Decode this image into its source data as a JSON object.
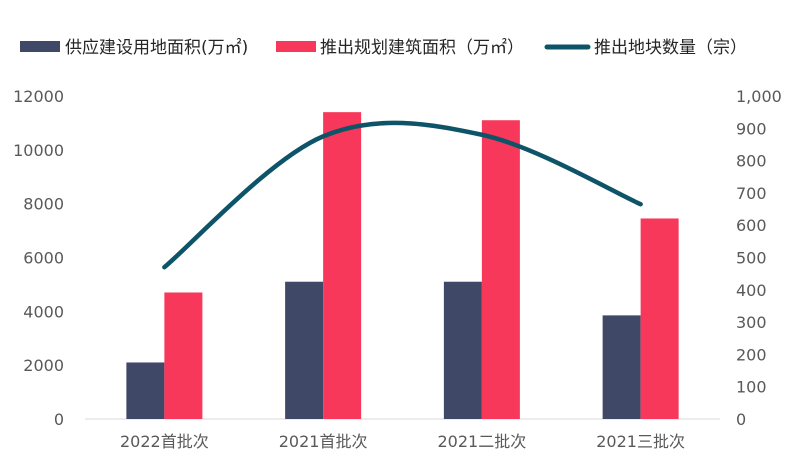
{
  "chart_data": {
    "type": "bar+line",
    "categories": [
      "2022首批次",
      "2021首批次",
      "2021二批次",
      "2021三批次"
    ],
    "series": [
      {
        "name": "供应建设用地面积(万㎡)",
        "type": "bar",
        "axis": "left",
        "color": "#404868",
        "values": [
          2100,
          5100,
          5100,
          3850
        ]
      },
      {
        "name": "推出规划建筑面积（万㎡）",
        "type": "bar",
        "axis": "left",
        "color": "#F7385A",
        "values": [
          4700,
          11400,
          11100,
          7450
        ]
      },
      {
        "name": "推出地块数量（宗）",
        "type": "line",
        "axis": "right",
        "color": "#0E5468",
        "smooth": true,
        "values": [
          470,
          875,
          880,
          665
        ]
      }
    ],
    "left_axis": {
      "min": 0,
      "max": 12000,
      "step": 2000,
      "tick_labels": [
        "0",
        "2000",
        "4000",
        "6000",
        "8000",
        "10000",
        "12000"
      ]
    },
    "right_axis": {
      "min": 0,
      "max": 1000,
      "step": 100,
      "tick_labels": [
        "0",
        "100",
        "200",
        "300",
        "400",
        "500",
        "600",
        "700",
        "800",
        "900",
        "1,000"
      ]
    },
    "legend_position": "top",
    "grid": false
  }
}
